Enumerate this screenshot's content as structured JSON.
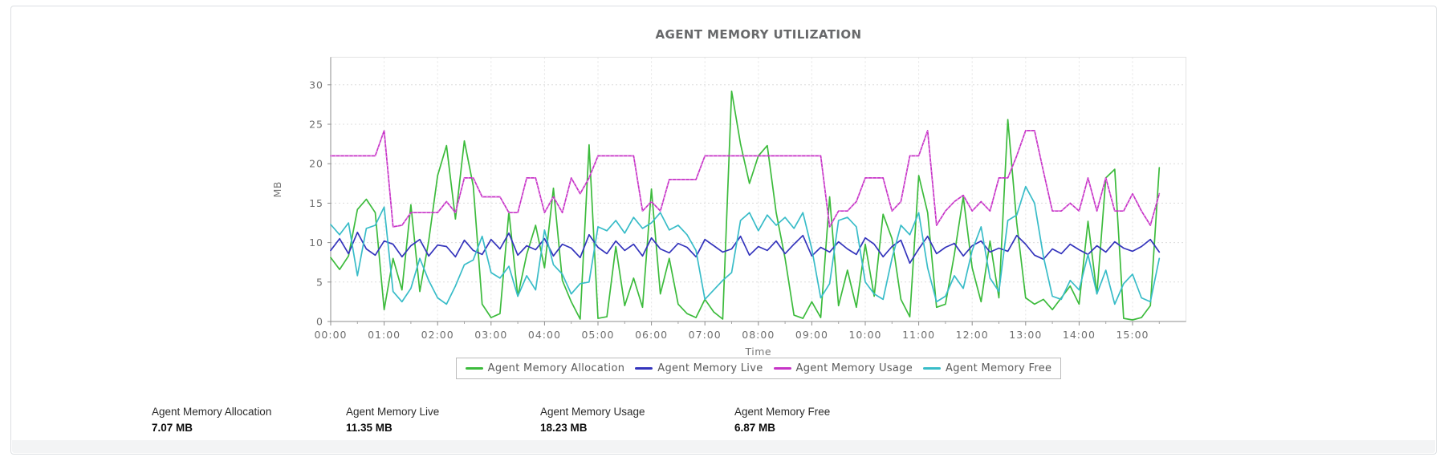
{
  "title": "AGENT MEMORY UTILIZATION",
  "chart_data": {
    "type": "line",
    "title": "AGENT MEMORY UTILIZATION",
    "xlabel": "Time",
    "ylabel": "MB",
    "ylim": [
      0,
      33.5
    ],
    "yticks": [
      0,
      5,
      10,
      15,
      20,
      25,
      30
    ],
    "x_hours_range": [
      0,
      16
    ],
    "xtick_labels": [
      "00:00",
      "01:00",
      "02:00",
      "03:00",
      "04:00",
      "05:00",
      "06:00",
      "07:00",
      "08:00",
      "09:00",
      "10:00",
      "11:00",
      "12:00",
      "13:00",
      "14:00",
      "15:00"
    ],
    "sample_interval_minutes": 10,
    "grid": true,
    "legend_position": "bottom",
    "series": [
      {
        "name": "Agent Memory Allocation",
        "color": "#3cbb3c",
        "values": [
          8.1,
          6.6,
          8.3,
          14.2,
          15.5,
          13.8,
          1.5,
          8.0,
          4.0,
          14.8,
          3.8,
          10.2,
          18.5,
          22.3,
          13.0,
          22.9,
          17.2,
          2.2,
          0.5,
          1.0,
          13.9,
          3.2,
          8.5,
          12.2,
          6.8,
          16.9,
          5.2,
          2.5,
          0.3,
          22.4,
          0.4,
          0.6,
          9.5,
          2.0,
          5.5,
          1.8,
          16.8,
          3.5,
          8.0,
          2.2,
          1.0,
          0.5,
          2.8,
          1.2,
          0.3,
          29.2,
          22.5,
          17.5,
          21.0,
          22.3,
          13.8,
          8.0,
          0.8,
          0.4,
          2.5,
          0.5,
          15.8,
          2.0,
          6.5,
          1.8,
          9.8,
          3.2,
          13.6,
          10.5,
          2.8,
          0.6,
          18.5,
          13.8,
          1.8,
          2.2,
          8.5,
          15.8,
          6.8,
          2.5,
          10.2,
          3.0,
          25.6,
          12.5,
          3.0,
          2.2,
          2.8,
          1.5,
          3.0,
          4.5,
          2.2,
          12.7,
          3.5,
          18.2,
          19.3,
          0.4,
          0.2,
          0.5,
          2.0,
          19.5
        ]
      },
      {
        "name": "Agent Memory Live",
        "color": "#3434bc",
        "values": [
          9.0,
          10.5,
          8.6,
          11.3,
          9.2,
          8.4,
          10.2,
          9.8,
          8.2,
          9.6,
          10.4,
          8.3,
          9.7,
          9.5,
          8.2,
          10.3,
          9.0,
          8.5,
          10.4,
          9.2,
          11.2,
          8.4,
          9.6,
          9.1,
          10.5,
          8.3,
          9.8,
          9.3,
          8.1,
          11.0,
          9.4,
          8.6,
          10.2,
          9.0,
          9.8,
          8.3,
          10.6,
          9.2,
          8.7,
          9.9,
          9.4,
          8.2,
          10.4,
          9.6,
          8.8,
          9.2,
          10.8,
          8.4,
          9.5,
          9.0,
          10.2,
          8.6,
          9.8,
          10.9,
          8.3,
          9.4,
          8.8,
          10.1,
          9.2,
          8.5,
          10.6,
          9.8,
          8.2,
          9.5,
          10.3,
          7.4,
          9.2,
          10.8,
          8.6,
          9.4,
          9.9,
          8.3,
          9.6,
          10.2,
          8.8,
          9.3,
          8.9,
          10.9,
          9.8,
          8.4,
          7.9,
          9.2,
          8.6,
          9.8,
          9.1,
          8.5,
          9.6,
          8.8,
          10.1,
          9.3,
          8.9,
          9.5,
          10.4,
          8.8
        ]
      },
      {
        "name": "Agent Memory Usage",
        "color": "#c633c6",
        "dashed_texture": true,
        "values": [
          21,
          21,
          21,
          21,
          21,
          21,
          24.2,
          12,
          12.2,
          13.8,
          13.8,
          13.8,
          13.8,
          15.2,
          13.8,
          18.2,
          18.2,
          15.8,
          15.8,
          15.8,
          13.8,
          13.8,
          18.2,
          18.2,
          13.8,
          15.8,
          13.8,
          18.2,
          16.2,
          18.2,
          21,
          21,
          21,
          21,
          21,
          14,
          15.2,
          14,
          18,
          18,
          18,
          18,
          21,
          21,
          21,
          21,
          21,
          21,
          21,
          21,
          21,
          21,
          21,
          21,
          21,
          21,
          12,
          14,
          14,
          15.2,
          18.2,
          18.2,
          18.2,
          14,
          15.2,
          21,
          21,
          24.2,
          12.2,
          14,
          15.2,
          16,
          14,
          15.2,
          14,
          18.2,
          18.2,
          21,
          24.2,
          24.2,
          19,
          14,
          14,
          15,
          14,
          18.2,
          14,
          18.2,
          14,
          14,
          16.2,
          14,
          12.2,
          16.2
        ]
      },
      {
        "name": "Agent Memory Free",
        "color": "#38bcc8",
        "values": [
          12.3,
          11.0,
          12.5,
          5.8,
          11.8,
          12.2,
          14.5,
          3.8,
          2.5,
          4.2,
          8.0,
          5.2,
          3.0,
          2.2,
          4.5,
          7.2,
          7.8,
          10.8,
          6.2,
          5.5,
          7.0,
          3.2,
          5.8,
          4.0,
          11.6,
          7.2,
          6.0,
          3.5,
          4.8,
          5.0,
          12.0,
          11.5,
          12.8,
          11.2,
          13.2,
          11.8,
          12.5,
          13.8,
          11.6,
          12.2,
          11.0,
          9.0,
          2.8,
          4.0,
          5.2,
          6.2,
          12.8,
          13.8,
          11.5,
          13.5,
          12.2,
          13.2,
          11.8,
          13.8,
          9.2,
          3.0,
          4.8,
          12.8,
          13.2,
          12.0,
          5.0,
          3.5,
          2.8,
          8.0,
          12.2,
          11.0,
          13.8,
          6.8,
          2.5,
          3.2,
          5.8,
          4.2,
          9.0,
          12.0,
          5.5,
          3.8,
          12.8,
          13.5,
          17.1,
          15.0,
          8.2,
          3.2,
          2.8,
          5.2,
          4.0,
          8.5,
          3.5,
          6.5,
          2.2,
          4.8,
          6.0,
          3.0,
          2.5,
          8.0
        ]
      }
    ]
  },
  "legend": {
    "items": [
      {
        "label": "Agent Memory Allocation",
        "color": "#3cbb3c"
      },
      {
        "label": "Agent Memory Live",
        "color": "#3434bc"
      },
      {
        "label": "Agent Memory Usage",
        "color": "#c633c6"
      },
      {
        "label": "Agent Memory Free",
        "color": "#38bcc8"
      }
    ]
  },
  "stats": [
    {
      "label": "Agent Memory Allocation",
      "value": "7.07 MB"
    },
    {
      "label": "Agent Memory Live",
      "value": "11.35 MB"
    },
    {
      "label": "Agent Memory Usage",
      "value": "18.23 MB"
    },
    {
      "label": "Agent Memory Free",
      "value": "6.87 MB"
    }
  ]
}
